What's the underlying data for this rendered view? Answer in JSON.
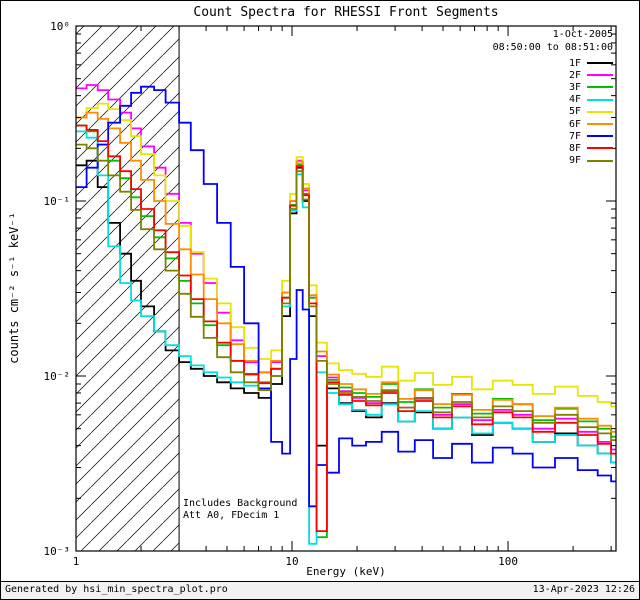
{
  "chart_data": {
    "type": "line",
    "title": "Count Spectra for RHESSI Front Segments",
    "date_label": "1-Oct-2005",
    "time_label": "08:50:00 to 08:51:00",
    "xlabel": "Energy (keV)",
    "ylabel": "counts cm⁻² s⁻¹ keV⁻¹",
    "x_scale": "log",
    "y_scale": "log",
    "xlim": [
      1,
      316
    ],
    "ylim": [
      0.001,
      1
    ],
    "x_ticks": [
      {
        "v": 1,
        "label": "1"
      },
      {
        "v": 10,
        "label": "10"
      },
      {
        "v": 100,
        "label": "100"
      }
    ],
    "y_ticks": [
      {
        "v": 1,
        "label": "10⁰"
      },
      {
        "v": 0.1,
        "label": "10⁻¹"
      },
      {
        "v": 0.01,
        "label": "10⁻²"
      },
      {
        "v": 0.001,
        "label": "10⁻³"
      }
    ],
    "hatch_region": {
      "from": 1,
      "to": 3
    },
    "annotations": [
      "Includes Background",
      "Att A0, FDecim 1"
    ],
    "energies_keV": [
      1.0,
      1.12,
      1.26,
      1.41,
      1.6,
      1.8,
      2.0,
      2.3,
      2.6,
      3.0,
      3.4,
      3.9,
      4.5,
      5.2,
      6.0,
      7.0,
      8.0,
      9.0,
      9.8,
      10.5,
      11.2,
      12.0,
      13.0,
      14.5,
      16.5,
      19.0,
      22.0,
      26.0,
      31.0,
      37.0,
      45.0,
      55.0,
      68.0,
      85.0,
      105.0,
      130.0,
      165.0,
      210.0,
      260.0,
      300.0
    ],
    "series": [
      {
        "name": "1F",
        "color": "#000000",
        "values": [
          0.16,
          0.17,
          0.12,
          0.075,
          0.05,
          0.035,
          0.025,
          0.018,
          0.014,
          0.012,
          0.011,
          0.01,
          0.0092,
          0.0085,
          0.008,
          0.0075,
          0.009,
          0.022,
          0.085,
          0.155,
          0.1,
          0.022,
          0.004,
          0.0085,
          0.007,
          0.0063,
          0.0058,
          0.007,
          0.0055,
          0.0062,
          0.005,
          0.0058,
          0.0046,
          0.0054,
          0.005,
          0.0042,
          0.0047,
          0.004,
          0.0036,
          0.0032
        ]
      },
      {
        "name": "2F",
        "color": "#ff00ff",
        "values": [
          0.44,
          0.46,
          0.43,
          0.38,
          0.32,
          0.26,
          0.205,
          0.155,
          0.11,
          0.075,
          0.05,
          0.034,
          0.023,
          0.016,
          0.012,
          0.0105,
          0.012,
          0.03,
          0.1,
          0.17,
          0.115,
          0.028,
          0.013,
          0.0098,
          0.0082,
          0.0075,
          0.007,
          0.0082,
          0.0066,
          0.0074,
          0.006,
          0.0069,
          0.0056,
          0.0064,
          0.006,
          0.005,
          0.0057,
          0.0048,
          0.0042,
          0.0038
        ]
      },
      {
        "name": "3F",
        "color": "#00c000",
        "values": [
          0.27,
          0.25,
          0.21,
          0.17,
          0.135,
          0.105,
          0.082,
          0.062,
          0.047,
          0.035,
          0.026,
          0.0195,
          0.015,
          0.0122,
          0.0103,
          0.0092,
          0.011,
          0.028,
          0.095,
          0.162,
          0.11,
          0.028,
          0.0012,
          0.0095,
          0.0086,
          0.008,
          0.0076,
          0.009,
          0.0071,
          0.0084,
          0.0066,
          0.0079,
          0.0061,
          0.0074,
          0.0069,
          0.0056,
          0.0065,
          0.0055,
          0.005,
          0.0045
        ]
      },
      {
        "name": "4F",
        "color": "#00e0e0",
        "values": [
          0.25,
          0.23,
          0.14,
          0.055,
          0.034,
          0.027,
          0.022,
          0.018,
          0.015,
          0.013,
          0.0115,
          0.0105,
          0.0098,
          0.0092,
          0.0088,
          0.0084,
          0.01,
          0.025,
          0.088,
          0.142,
          0.092,
          0.0011,
          0.0105,
          0.008,
          0.0069,
          0.0064,
          0.006,
          0.0069,
          0.0055,
          0.0063,
          0.005,
          0.0058,
          0.0047,
          0.0054,
          0.005,
          0.0042,
          0.0046,
          0.004,
          0.0036,
          0.0032
        ]
      },
      {
        "name": "5F",
        "color": "#e6e600",
        "values": [
          0.3,
          0.34,
          0.36,
          0.335,
          0.29,
          0.235,
          0.185,
          0.14,
          0.1,
          0.072,
          0.051,
          0.036,
          0.026,
          0.019,
          0.0145,
          0.0125,
          0.014,
          0.035,
          0.11,
          0.178,
          0.125,
          0.033,
          0.0155,
          0.0118,
          0.0108,
          0.0103,
          0.0099,
          0.0113,
          0.0094,
          0.0104,
          0.0089,
          0.0099,
          0.0084,
          0.0094,
          0.0089,
          0.0079,
          0.0087,
          0.0077,
          0.0071,
          0.0067
        ]
      },
      {
        "name": "6F",
        "color": "#ff8c00",
        "values": [
          0.3,
          0.32,
          0.295,
          0.26,
          0.215,
          0.17,
          0.132,
          0.1,
          0.074,
          0.053,
          0.038,
          0.0275,
          0.02,
          0.0152,
          0.0122,
          0.0105,
          0.0122,
          0.03,
          0.1,
          0.168,
          0.118,
          0.029,
          0.0138,
          0.0102,
          0.009,
          0.0084,
          0.0079,
          0.0092,
          0.0074,
          0.0083,
          0.0069,
          0.0078,
          0.0064,
          0.0073,
          0.0069,
          0.0059,
          0.0066,
          0.0057,
          0.0052,
          0.0048
        ]
      },
      {
        "name": "7F",
        "color": "#0000ff",
        "values": [
          0.12,
          0.155,
          0.21,
          0.28,
          0.35,
          0.415,
          0.45,
          0.43,
          0.365,
          0.28,
          0.195,
          0.125,
          0.075,
          0.042,
          0.02,
          0.0085,
          0.0042,
          0.0036,
          0.0125,
          0.031,
          0.024,
          0.0018,
          0.0031,
          0.0028,
          0.0044,
          0.004,
          0.0042,
          0.0048,
          0.0037,
          0.0043,
          0.0034,
          0.0041,
          0.0032,
          0.0039,
          0.0036,
          0.003,
          0.0034,
          0.0029,
          0.0027,
          0.0025
        ]
      },
      {
        "name": "8F",
        "color": "#ff0000",
        "values": [
          0.27,
          0.255,
          0.22,
          0.18,
          0.148,
          0.117,
          0.09,
          0.068,
          0.051,
          0.0375,
          0.0275,
          0.0205,
          0.0155,
          0.0122,
          0.0102,
          0.0091,
          0.011,
          0.028,
          0.094,
          0.158,
          0.108,
          0.026,
          0.0013,
          0.0092,
          0.0078,
          0.0072,
          0.0068,
          0.008,
          0.0063,
          0.0072,
          0.0058,
          0.0067,
          0.0053,
          0.0062,
          0.0058,
          0.0048,
          0.0054,
          0.0046,
          0.0041,
          0.0036
        ]
      },
      {
        "name": "9F",
        "color": "#808000",
        "values": [
          0.21,
          0.2,
          0.17,
          0.14,
          0.113,
          0.089,
          0.069,
          0.053,
          0.04,
          0.0295,
          0.0218,
          0.0165,
          0.0128,
          0.0105,
          0.0092,
          0.0083,
          0.01,
          0.026,
          0.09,
          0.148,
          0.102,
          0.025,
          0.0122,
          0.009,
          0.008,
          0.0076,
          0.0072,
          0.0083,
          0.0066,
          0.0075,
          0.0062,
          0.0071,
          0.0058,
          0.0067,
          0.0063,
          0.0054,
          0.006,
          0.0051,
          0.0047,
          0.0043
        ]
      }
    ]
  },
  "footer": {
    "left": "Generated by hsi_min_spectra_plot.pro",
    "right": "13-Apr-2023 12:26"
  }
}
